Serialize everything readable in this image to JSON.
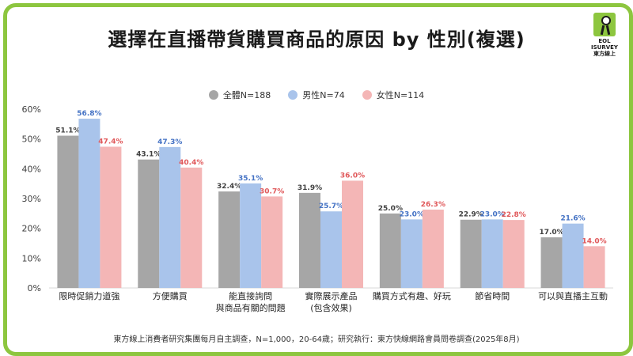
{
  "title": "選擇在直播帶貨購買商品的原因 by 性別(複選)",
  "logo": {
    "line1": "EOL",
    "line2": "ISURVEY",
    "line3": "東方線上"
  },
  "footnote": "東方線上消費者研究集團每月自主調查，N=1,000，20-64歲；研究執行：東方快線網路會員問卷調查(2025年8月)",
  "chart_data": {
    "type": "bar",
    "categories": [
      [
        "限時促銷力道強"
      ],
      [
        "方便購買"
      ],
      [
        "能直接詢問",
        "與商品有關的問題"
      ],
      [
        "實際展示產品",
        "(包含效果)"
      ],
      [
        "購買方式有趣、好玩"
      ],
      [
        "節省時間"
      ],
      [
        "可以與直播主互動"
      ]
    ],
    "series": [
      {
        "name": "全體N=188",
        "color": "#a6a6a6",
        "label_color": "#404040",
        "values": [
          51.1,
          43.1,
          32.4,
          31.9,
          25.0,
          22.9,
          17.0
        ]
      },
      {
        "name": "男性N=74",
        "color": "#a9c4eb",
        "label_color": "#4472c4",
        "values": [
          56.8,
          47.3,
          35.1,
          25.7,
          23.0,
          23.0,
          21.6
        ]
      },
      {
        "name": "女性N=114",
        "color": "#f4b6b6",
        "label_color": "#e0585a",
        "values": [
          47.4,
          40.4,
          30.7,
          36.0,
          26.3,
          22.8,
          14.0
        ]
      }
    ],
    "ylim": [
      0,
      60
    ],
    "yticks": [
      "0%",
      "10%",
      "20%",
      "30%",
      "40%",
      "50%",
      "60%"
    ],
    "value_suffix": "%",
    "grid": false,
    "legend": "top-center"
  }
}
